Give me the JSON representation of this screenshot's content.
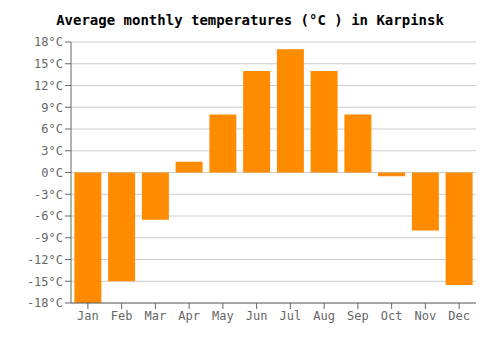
{
  "chart_data": {
    "type": "bar",
    "title": "Average monthly temperatures (°C ) in Karpinsk",
    "categories": [
      "Jan",
      "Feb",
      "Mar",
      "Apr",
      "May",
      "Jun",
      "Jul",
      "Aug",
      "Sep",
      "Oct",
      "Nov",
      "Dec"
    ],
    "values": [
      -18,
      -15,
      -6.5,
      1.5,
      8,
      14,
      17,
      14,
      8,
      -0.5,
      -8,
      -15.5
    ],
    "color": "#FF8C00",
    "ylim": [
      -18,
      18
    ],
    "yticks": [
      {
        "value": -18,
        "label": "-18°C"
      },
      {
        "value": -15,
        "label": "-15°C"
      },
      {
        "value": -12,
        "label": "-12°C"
      },
      {
        "value": -9,
        "label": "-9°C"
      },
      {
        "value": -6,
        "label": "-6°C"
      },
      {
        "value": -3,
        "label": "-3°C"
      },
      {
        "value": 0,
        "label": "0°C"
      },
      {
        "value": 3,
        "label": "3°C"
      },
      {
        "value": 6,
        "label": "6°C"
      },
      {
        "value": 9,
        "label": "9°C"
      },
      {
        "value": 12,
        "label": "12°C"
      },
      {
        "value": 15,
        "label": "15°C"
      },
      {
        "value": 18,
        "label": "18°C"
      }
    ],
    "grid": true
  }
}
